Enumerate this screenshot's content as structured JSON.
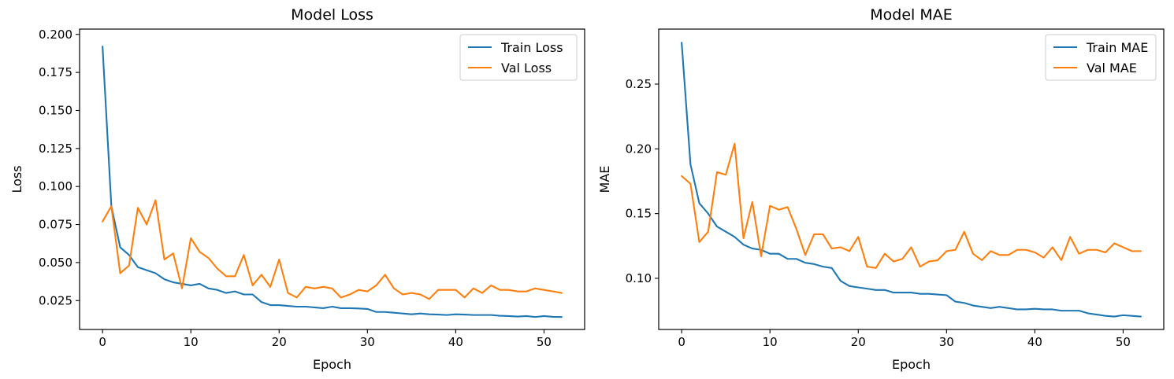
{
  "chart_data": [
    {
      "type": "line",
      "title": "Model Loss",
      "xlabel": "Epoch",
      "ylabel": "Loss",
      "xlim": [
        -2.6,
        54.6
      ],
      "ylim": [
        0.006,
        0.2035
      ],
      "xticks": [
        0,
        10,
        20,
        30,
        40,
        50
      ],
      "yticks": [
        0.025,
        0.05,
        0.075,
        0.1,
        0.125,
        0.15,
        0.175,
        0.2
      ],
      "xtick_labels": [
        "0",
        "10",
        "20",
        "30",
        "40",
        "50"
      ],
      "ytick_labels": [
        "0.025",
        "0.050",
        "0.075",
        "0.100",
        "0.125",
        "0.150",
        "0.175",
        "0.200"
      ],
      "legend_position": "top-right",
      "grid": false,
      "series": [
        {
          "name": "Train Loss",
          "color": "#1f77b4",
          "x": [
            0,
            1,
            2,
            3,
            4,
            5,
            6,
            7,
            8,
            9,
            10,
            11,
            12,
            13,
            14,
            15,
            16,
            17,
            18,
            19,
            20,
            21,
            22,
            23,
            24,
            25,
            26,
            27,
            28,
            29,
            30,
            31,
            32,
            33,
            34,
            35,
            36,
            37,
            38,
            39,
            40,
            41,
            42,
            43,
            44,
            45,
            46,
            47,
            48,
            49,
            50,
            51,
            52
          ],
          "values": [
            0.192,
            0.087,
            0.06,
            0.055,
            0.047,
            0.045,
            0.043,
            0.039,
            0.037,
            0.036,
            0.035,
            0.036,
            0.033,
            0.032,
            0.03,
            0.031,
            0.029,
            0.029,
            0.024,
            0.022,
            0.022,
            0.0215,
            0.021,
            0.021,
            0.0205,
            0.02,
            0.021,
            0.02,
            0.02,
            0.0198,
            0.0195,
            0.0175,
            0.0175,
            0.017,
            0.0165,
            0.016,
            0.0165,
            0.016,
            0.0158,
            0.0155,
            0.016,
            0.0158,
            0.0155,
            0.0155,
            0.0155,
            0.015,
            0.0148,
            0.0145,
            0.0148,
            0.0142,
            0.0148,
            0.0143,
            0.0142
          ]
        },
        {
          "name": "Val Loss",
          "color": "#ff7f0e",
          "x": [
            0,
            1,
            2,
            3,
            4,
            5,
            6,
            7,
            8,
            9,
            10,
            11,
            12,
            13,
            14,
            15,
            16,
            17,
            18,
            19,
            20,
            21,
            22,
            23,
            24,
            25,
            26,
            27,
            28,
            29,
            30,
            31,
            32,
            33,
            34,
            35,
            36,
            37,
            38,
            39,
            40,
            41,
            42,
            43,
            44,
            45,
            46,
            47,
            48,
            49,
            50,
            51,
            52
          ],
          "values": [
            0.077,
            0.087,
            0.043,
            0.048,
            0.086,
            0.075,
            0.091,
            0.052,
            0.056,
            0.033,
            0.066,
            0.057,
            0.053,
            0.046,
            0.041,
            0.041,
            0.055,
            0.035,
            0.042,
            0.034,
            0.052,
            0.03,
            0.027,
            0.034,
            0.033,
            0.034,
            0.033,
            0.027,
            0.029,
            0.032,
            0.031,
            0.035,
            0.042,
            0.033,
            0.029,
            0.03,
            0.029,
            0.026,
            0.032,
            0.032,
            0.032,
            0.027,
            0.033,
            0.03,
            0.035,
            0.032,
            0.032,
            0.031,
            0.031,
            0.033,
            0.032,
            0.031,
            0.03
          ]
        }
      ]
    },
    {
      "type": "line",
      "title": "Model MAE",
      "xlabel": "Epoch",
      "ylabel": "MAE",
      "xlim": [
        -2.6,
        54.6
      ],
      "ylim": [
        0.0605,
        0.2925
      ],
      "xticks": [
        0,
        10,
        20,
        30,
        40,
        50
      ],
      "yticks": [
        0.1,
        0.15,
        0.2,
        0.25
      ],
      "xtick_labels": [
        "0",
        "10",
        "20",
        "30",
        "40",
        "50"
      ],
      "ytick_labels": [
        "0.10",
        "0.15",
        "0.20",
        "0.25"
      ],
      "legend_position": "top-right",
      "grid": false,
      "series": [
        {
          "name": "Train MAE",
          "color": "#1f77b4",
          "x": [
            0,
            1,
            2,
            3,
            4,
            5,
            6,
            7,
            8,
            9,
            10,
            11,
            12,
            13,
            14,
            15,
            16,
            17,
            18,
            19,
            20,
            21,
            22,
            23,
            24,
            25,
            26,
            27,
            28,
            29,
            30,
            31,
            32,
            33,
            34,
            35,
            36,
            37,
            38,
            39,
            40,
            41,
            42,
            43,
            44,
            45,
            46,
            47,
            48,
            49,
            50,
            51,
            52
          ],
          "values": [
            0.282,
            0.188,
            0.158,
            0.15,
            0.14,
            0.136,
            0.132,
            0.126,
            0.123,
            0.122,
            0.119,
            0.119,
            0.115,
            0.115,
            0.112,
            0.111,
            0.109,
            0.108,
            0.098,
            0.094,
            0.093,
            0.092,
            0.091,
            0.091,
            0.089,
            0.089,
            0.089,
            0.088,
            0.088,
            0.0875,
            0.087,
            0.082,
            0.081,
            0.079,
            0.078,
            0.077,
            0.078,
            0.077,
            0.076,
            0.076,
            0.0765,
            0.076,
            0.076,
            0.075,
            0.075,
            0.075,
            0.073,
            0.072,
            0.071,
            0.0705,
            0.0715,
            0.071,
            0.0705
          ]
        },
        {
          "name": "Val MAE",
          "color": "#ff7f0e",
          "x": [
            0,
            1,
            2,
            3,
            4,
            5,
            6,
            7,
            8,
            9,
            10,
            11,
            12,
            13,
            14,
            15,
            16,
            17,
            18,
            19,
            20,
            21,
            22,
            23,
            24,
            25,
            26,
            27,
            28,
            29,
            30,
            31,
            32,
            33,
            34,
            35,
            36,
            37,
            38,
            39,
            40,
            41,
            42,
            43,
            44,
            45,
            46,
            47,
            48,
            49,
            50,
            51,
            52
          ],
          "values": [
            0.179,
            0.173,
            0.128,
            0.136,
            0.182,
            0.18,
            0.204,
            0.131,
            0.159,
            0.117,
            0.156,
            0.153,
            0.155,
            0.138,
            0.118,
            0.134,
            0.134,
            0.123,
            0.124,
            0.121,
            0.132,
            0.109,
            0.108,
            0.119,
            0.113,
            0.115,
            0.124,
            0.109,
            0.113,
            0.114,
            0.121,
            0.122,
            0.136,
            0.119,
            0.114,
            0.121,
            0.118,
            0.118,
            0.122,
            0.122,
            0.12,
            0.116,
            0.124,
            0.114,
            0.132,
            0.119,
            0.122,
            0.122,
            0.12,
            0.127,
            0.124,
            0.121,
            0.121
          ]
        }
      ]
    }
  ]
}
